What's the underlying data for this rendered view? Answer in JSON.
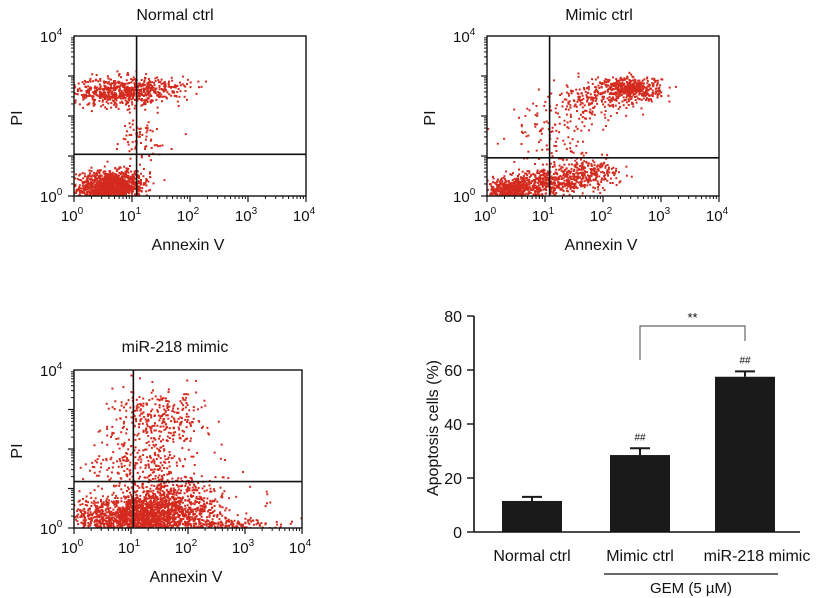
{
  "chart_data": [
    {
      "type": "scatter",
      "title": "Normal ctrl",
      "xlabel": "Annexin V",
      "ylabel": "PI",
      "x_scale": "log",
      "y_scale": "log",
      "x_ticks": [
        {
          "base": "10",
          "exp": "0"
        },
        {
          "base": "10",
          "exp": "1"
        },
        {
          "base": "10",
          "exp": "2"
        },
        {
          "base": "10",
          "exp": "3"
        },
        {
          "base": "10",
          "exp": "4"
        }
      ],
      "y_ticks": [
        {
          "base": "10",
          "exp": "0"
        },
        {
          "base": "10",
          "exp": "4"
        }
      ],
      "xlim": [
        1,
        10000
      ],
      "ylim": [
        1,
        10000
      ],
      "gate": {
        "x": 12,
        "y": 11
      },
      "point_color": "#d42a1e",
      "populations": [
        {
          "cx": 3.5,
          "cy": 1.6,
          "sx": 0.25,
          "sy": 0.22,
          "count": 1100
        },
        {
          "cx": 8,
          "cy": 2.2,
          "sx": 0.2,
          "sy": 0.18,
          "count": 250
        },
        {
          "cx": 5,
          "cy": 420,
          "sx": 0.35,
          "sy": 0.18,
          "count": 500
        },
        {
          "cx": 25,
          "cy": 500,
          "sx": 0.3,
          "sy": 0.16,
          "count": 200
        },
        {
          "cx": 12,
          "cy": 25,
          "sx": 0.3,
          "sy": 0.3,
          "count": 70
        }
      ]
    },
    {
      "type": "scatter",
      "title": "Mimic ctrl",
      "xlabel": "Annexin V",
      "ylabel": "PI",
      "x_scale": "log",
      "y_scale": "log",
      "x_ticks": [
        {
          "base": "10",
          "exp": "0"
        },
        {
          "base": "10",
          "exp": "1"
        },
        {
          "base": "10",
          "exp": "2"
        },
        {
          "base": "10",
          "exp": "3"
        },
        {
          "base": "10",
          "exp": "4"
        }
      ],
      "y_ticks": [
        {
          "base": "10",
          "exp": "0"
        },
        {
          "base": "10",
          "exp": "4"
        }
      ],
      "xlim": [
        1,
        10000
      ],
      "ylim": [
        1,
        10000
      ],
      "gate": {
        "x": 12,
        "y": 9
      },
      "point_color": "#d42a1e",
      "populations": [
        {
          "cx": 2.5,
          "cy": 1.4,
          "sx": 0.2,
          "sy": 0.15,
          "count": 500
        },
        {
          "cx": 10,
          "cy": 2.2,
          "sx": 0.4,
          "sy": 0.16,
          "count": 450
        },
        {
          "cx": 50,
          "cy": 4,
          "sx": 0.3,
          "sy": 0.18,
          "count": 250
        },
        {
          "cx": 300,
          "cy": 500,
          "sx": 0.25,
          "sy": 0.15,
          "count": 450
        },
        {
          "cx": 60,
          "cy": 250,
          "sx": 0.35,
          "sy": 0.25,
          "count": 200
        },
        {
          "cx": 12,
          "cy": 40,
          "sx": 0.35,
          "sy": 0.4,
          "count": 100
        }
      ]
    },
    {
      "type": "scatter",
      "title": "miR-218 mimic",
      "xlabel": "Annexin V",
      "ylabel": "PI",
      "x_scale": "log",
      "y_scale": "log",
      "x_ticks": [
        {
          "base": "10",
          "exp": "0"
        },
        {
          "base": "10",
          "exp": "1"
        },
        {
          "base": "10",
          "exp": "2"
        },
        {
          "base": "10",
          "exp": "3"
        },
        {
          "base": "10",
          "exp": "4"
        }
      ],
      "y_ticks": [
        {
          "base": "10",
          "exp": "0"
        },
        {
          "base": "10",
          "exp": "4"
        }
      ],
      "xlim": [
        1,
        10000
      ],
      "ylim": [
        1,
        10000
      ],
      "gate": {
        "x": 11,
        "y": 15
      },
      "point_color": "#d42a1e",
      "populations": [
        {
          "cx": 12,
          "cy": 1.8,
          "sx": 0.55,
          "sy": 0.3,
          "count": 1800
        },
        {
          "cx": 60,
          "cy": 5,
          "sx": 0.5,
          "sy": 0.35,
          "count": 500
        },
        {
          "cx": 30,
          "cy": 600,
          "sx": 0.4,
          "sy": 0.35,
          "count": 300
        },
        {
          "cx": 500,
          "cy": 1.3,
          "sx": 0.45,
          "sy": 0.08,
          "count": 150
        },
        {
          "cx": 15,
          "cy": 50,
          "sx": 0.45,
          "sy": 0.4,
          "count": 250
        }
      ]
    },
    {
      "type": "bar",
      "ylabel": "Apoptosis cells (%)",
      "ylim": [
        0,
        80
      ],
      "yticks": [
        "0",
        "20",
        "40",
        "60",
        "80"
      ],
      "categories": [
        "Normal ctrl",
        "Mimic ctrl",
        "miR-218 mimic"
      ],
      "values": [
        11.5,
        28.5,
        57.5
      ],
      "errors": [
        1.5,
        2.5,
        2.0
      ],
      "bar_color": "#1a1a1a",
      "marks": [
        "",
        "##",
        "##"
      ],
      "comparison": {
        "label": "**",
        "from": 1,
        "to": 2
      },
      "group_label": "GEM (5 µM)"
    }
  ]
}
